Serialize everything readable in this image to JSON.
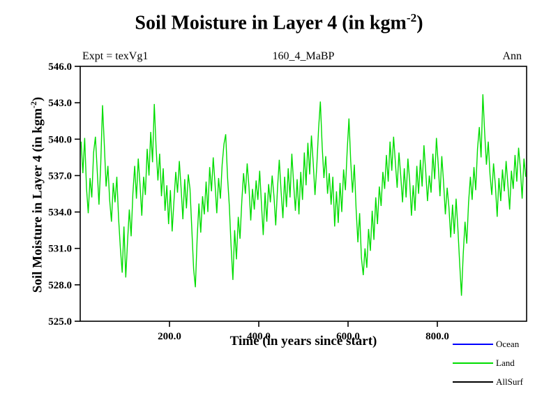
{
  "title": {
    "prefix": "Soil Moisture in Layer 4 (in kgm",
    "superscript": "-2",
    "suffix": ")"
  },
  "header": {
    "left": "Expt = texVg1",
    "center": "160_4_MaBP",
    "right": "Ann"
  },
  "x_axis": {
    "label": "Time (in years since start)",
    "ticks": [
      200,
      400,
      600,
      800
    ],
    "tick_labels": [
      "200.0",
      "400.0",
      "600.0",
      "800.0"
    ]
  },
  "y_axis": {
    "label_prefix": "Soil Moisture in Layer 4 (in kgm",
    "label_superscript": "-2",
    "label_suffix": ")",
    "ticks": [
      525,
      528,
      531,
      534,
      537,
      540,
      543,
      546
    ],
    "tick_labels": [
      "525.0",
      "528.0",
      "531.0",
      "534.0",
      "537.0",
      "540.0",
      "543.0",
      "546.0"
    ]
  },
  "legend": [
    {
      "label": "Ocean",
      "color": "#0000ff"
    },
    {
      "label": "Land",
      "color": "#00dd00"
    },
    {
      "label": "AllSurf",
      "color": "#000000"
    }
  ],
  "colors": {
    "land_line": "#00dd00",
    "ocean_line": "#0000ff",
    "allsurf_line": "#000000",
    "frame": "#000000"
  },
  "chart_data": {
    "type": "line",
    "title": "Soil Moisture in Layer 4 (in kgm-2)",
    "subtitle_left": "Expt = texVg1",
    "subtitle_center": "160_4_MaBP",
    "subtitle_right": "Ann",
    "xlabel": "Time (in years since start)",
    "ylabel": "Soil Moisture in Layer 4 (in kgm-2)",
    "xlim": [
      0,
      1000
    ],
    "ylim": [
      525,
      546
    ],
    "grid": false,
    "legend_position": "bottom-right",
    "legend_entries": [
      "Ocean",
      "Land",
      "AllSurf"
    ],
    "x_start": 2,
    "x_step": 4,
    "series": [
      {
        "name": "Land",
        "color": "#00dd00",
        "values": [
          539.8,
          537.2,
          540.1,
          536.0,
          533.9,
          536.8,
          535.2,
          538.9,
          540.2,
          537.5,
          534.6,
          537.9,
          542.8,
          539.5,
          536.1,
          537.8,
          535.0,
          533.2,
          536.4,
          534.8,
          536.9,
          533.5,
          531.0,
          529.0,
          532.8,
          528.6,
          531.5,
          534.2,
          532.0,
          535.5,
          537.8,
          535.1,
          538.4,
          536.2,
          533.7,
          536.9,
          535.4,
          539.2,
          537.0,
          540.6,
          538.1,
          542.9,
          539.3,
          536.6,
          538.8,
          535.3,
          537.6,
          534.1,
          536.2,
          533.0,
          535.8,
          532.4,
          534.9,
          537.3,
          535.6,
          538.2,
          536.0,
          533.4,
          536.7,
          534.3,
          537.1,
          535.9,
          532.6,
          529.3,
          527.8,
          531.9,
          534.7,
          532.3,
          535.3,
          533.8,
          536.5,
          534.0,
          537.7,
          535.7,
          538.5,
          536.3,
          533.9,
          536.8,
          535.1,
          537.9,
          539.6,
          540.4,
          536.9,
          534.5,
          531.2,
          528.4,
          532.5,
          530.1,
          533.6,
          531.8,
          534.9,
          537.2,
          535.5,
          538.0,
          536.1,
          533.3,
          535.9,
          534.2,
          536.6,
          535.0,
          537.4,
          534.7,
          532.1,
          535.6,
          533.2,
          536.3,
          534.8,
          537.0,
          535.3,
          532.9,
          536.0,
          538.3,
          535.7,
          533.5,
          536.9,
          534.4,
          537.6,
          535.2,
          538.8,
          536.4,
          534.1,
          536.7,
          533.8,
          537.3,
          535.0,
          538.9,
          536.2,
          539.7,
          537.1,
          540.3,
          538.0,
          535.4,
          537.8,
          540.9,
          543.1,
          539.4,
          536.8,
          538.6,
          535.5,
          537.2,
          534.6,
          536.9,
          532.8,
          535.7,
          533.1,
          536.4,
          534.0,
          537.5,
          535.8,
          539.0,
          541.7,
          538.2,
          535.6,
          537.9,
          534.3,
          531.5,
          533.9,
          530.2,
          528.8,
          531.0,
          529.4,
          532.6,
          530.8,
          534.1,
          531.7,
          535.2,
          533.0,
          536.1,
          534.5,
          537.3,
          535.9,
          538.7,
          536.5,
          539.8,
          537.4,
          540.2,
          538.1,
          536.0,
          538.9,
          537.0,
          534.8,
          537.6,
          535.2,
          538.4,
          536.6,
          533.7,
          536.2,
          534.1,
          537.8,
          535.5,
          538.3,
          536.1,
          539.5,
          537.3,
          534.9,
          537.0,
          535.6,
          538.8,
          536.7,
          540.1,
          537.9,
          535.3,
          538.6,
          536.4,
          533.8,
          536.0,
          534.4,
          531.9,
          534.6,
          532.2,
          535.1,
          532.7,
          529.8,
          527.1,
          530.5,
          533.2,
          531.4,
          534.8,
          536.9,
          535.0,
          537.7,
          535.8,
          539.2,
          541.0,
          538.5,
          543.7,
          540.6,
          537.9,
          539.8,
          537.1,
          535.4,
          538.0,
          536.2,
          533.6,
          536.8,
          534.9,
          537.5,
          535.7,
          538.2,
          536.3,
          534.2,
          537.4,
          535.9,
          538.7,
          536.5,
          539.3,
          537.6,
          535.1,
          538.4,
          536.9
        ]
      }
    ]
  }
}
